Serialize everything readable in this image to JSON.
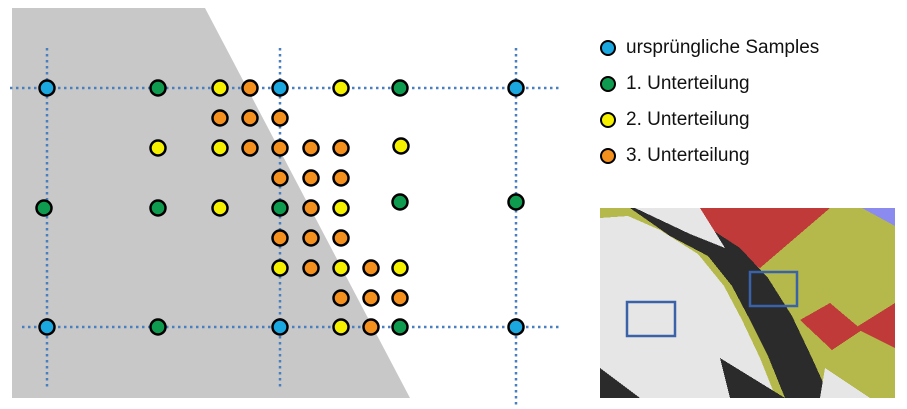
{
  "colors": {
    "blue": "#1ba7e0",
    "green": "#0f9b4f",
    "yellow": "#f5f000",
    "orange": "#f4901e",
    "triangle_fill": "#c8c8c8",
    "grid_line": "#4a7fbf"
  },
  "legend": [
    {
      "label": "ursprüngliche Samples",
      "color_key": "blue"
    },
    {
      "label": "1. Unterteilung",
      "color_key": "green"
    },
    {
      "label": "2. Unterteilung",
      "color_key": "yellow"
    },
    {
      "label": "3. Unterteilung",
      "color_key": "orange"
    }
  ]
}
